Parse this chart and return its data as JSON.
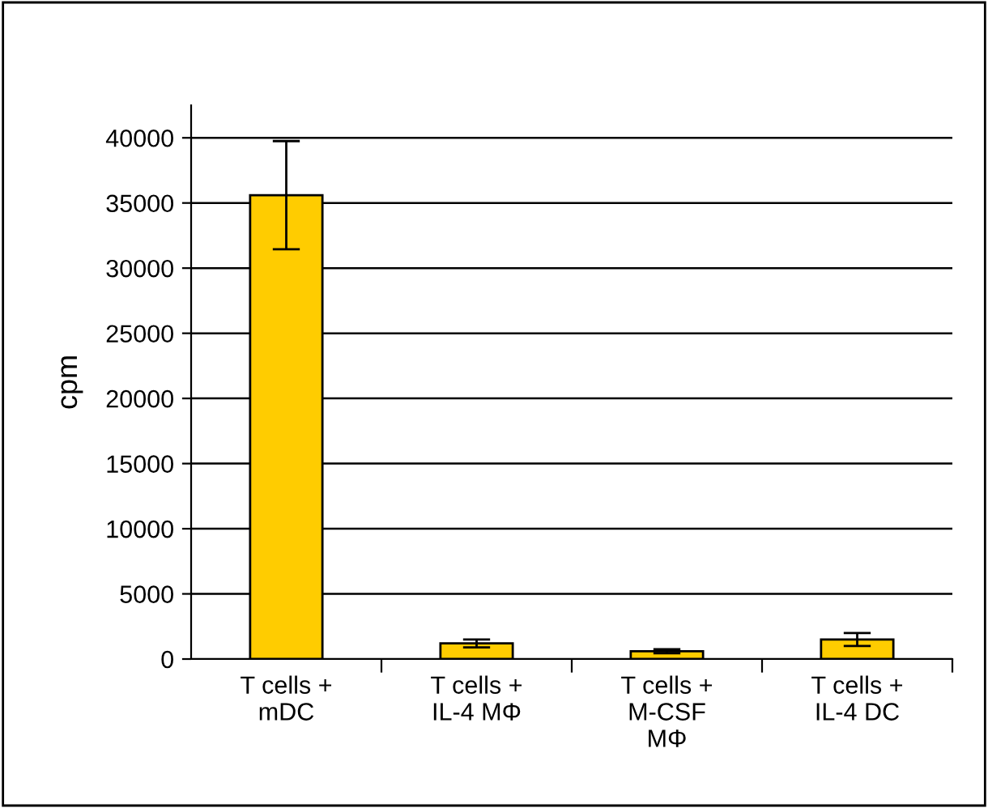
{
  "chart_data": {
    "type": "bar",
    "ylabel": "cpm",
    "categories": [
      "T cells +\nmDC",
      "T cells +\nIL-4 MΦ",
      "T cells +\nM-CSF\nMΦ",
      "T cells +\nIL-4 DC"
    ],
    "values": [
      35600,
      1200,
      600,
      1500
    ],
    "errors": [
      4150,
      300,
      150,
      500
    ],
    "color": "#ffcc00",
    "ylim": [
      0,
      42500
    ],
    "yticks": [
      0,
      5000,
      10000,
      15000,
      20000,
      25000,
      30000,
      35000,
      40000
    ],
    "grid": "y"
  }
}
